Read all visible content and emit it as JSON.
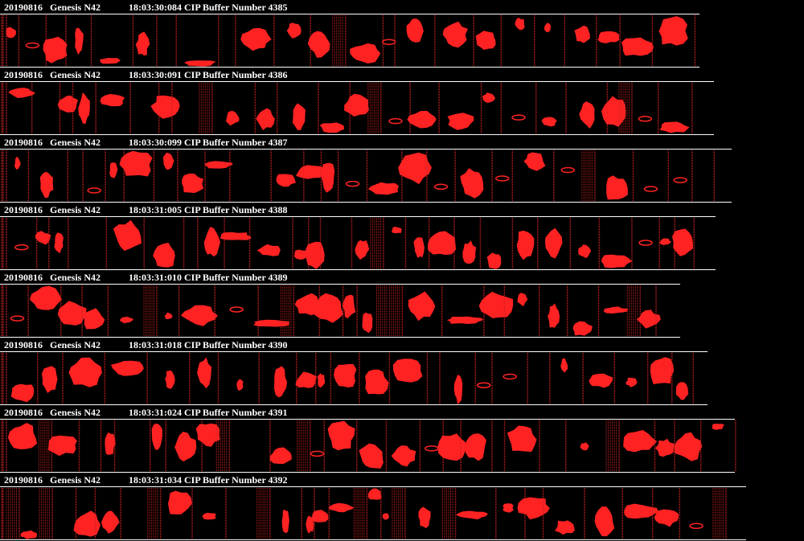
{
  "buffers": [
    {
      "date": "20190816",
      "aircraft": "Genesis N42",
      "time": "18:03:30:084",
      "label": "CIP Buffer Number 4385"
    },
    {
      "date": "20190816",
      "aircraft": "Genesis N42",
      "time": "18:03:30:091",
      "label": "CIP Buffer Number 4386"
    },
    {
      "date": "20190816",
      "aircraft": "Genesis N42",
      "time": "18:03:30:099",
      "label": "CIP Buffer Number 4387"
    },
    {
      "date": "20190816",
      "aircraft": "Genesis N42",
      "time": "18:03:31:005",
      "label": "CIP Buffer Number 4388"
    },
    {
      "date": "20190816",
      "aircraft": "Genesis N42",
      "time": "18:03:31:010",
      "label": "CIP Buffer Number 4389"
    },
    {
      "date": "20190816",
      "aircraft": "Genesis N42",
      "time": "18:03:31:018",
      "label": "CIP Buffer Number 4390"
    },
    {
      "date": "20190816",
      "aircraft": "Genesis N42",
      "time": "18:03:31:024",
      "label": "CIP Buffer Number 4391"
    },
    {
      "date": "20190816",
      "aircraft": "Genesis N42",
      "time": "18:03:31:034",
      "label": "CIP Buffer Number 4392"
    }
  ]
}
